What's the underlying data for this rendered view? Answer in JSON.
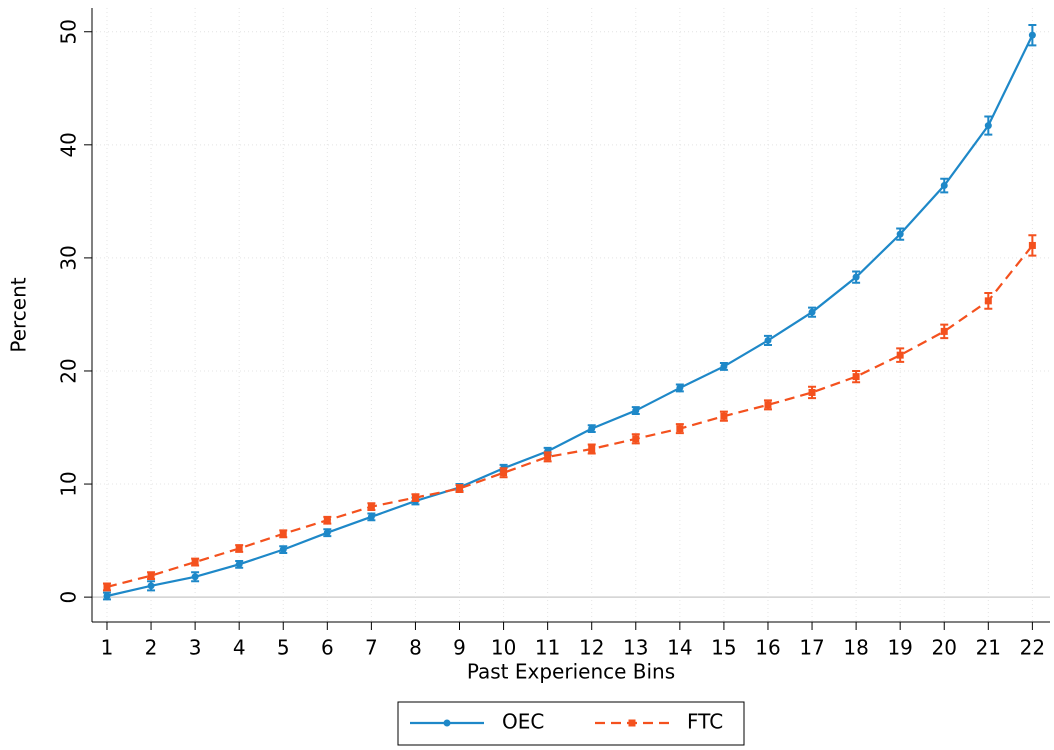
{
  "chart_data": {
    "type": "line",
    "x_label": "Past Experience Bins",
    "y_label": "Percent",
    "x": [
      1,
      2,
      3,
      4,
      5,
      6,
      7,
      8,
      9,
      10,
      11,
      12,
      13,
      14,
      15,
      16,
      17,
      18,
      19,
      20,
      21,
      22
    ],
    "series": [
      {
        "name": "OEC",
        "color": "#1e88c8",
        "marker": "circle",
        "dash": false,
        "values": [
          0.1,
          1.0,
          1.8,
          2.9,
          4.2,
          5.7,
          7.1,
          8.5,
          9.7,
          11.4,
          12.9,
          14.9,
          16.5,
          18.5,
          20.4,
          22.7,
          25.2,
          28.3,
          32.1,
          36.4,
          41.7,
          49.7
        ],
        "errors": [
          0.3,
          0.4,
          0.4,
          0.3,
          0.3,
          0.3,
          0.3,
          0.3,
          0.3,
          0.3,
          0.3,
          0.3,
          0.3,
          0.3,
          0.3,
          0.4,
          0.4,
          0.5,
          0.5,
          0.6,
          0.8,
          0.9
        ]
      },
      {
        "name": "FTC",
        "color": "#f4511e",
        "marker": "square",
        "dash": true,
        "values": [
          0.9,
          1.9,
          3.1,
          4.3,
          5.6,
          6.8,
          8.0,
          8.8,
          9.6,
          11.0,
          12.4,
          13.1,
          14.0,
          14.9,
          16.0,
          17.0,
          18.1,
          19.5,
          21.4,
          23.5,
          26.2,
          31.1
        ],
        "errors": [
          0.3,
          0.3,
          0.3,
          0.3,
          0.3,
          0.3,
          0.3,
          0.3,
          0.3,
          0.4,
          0.4,
          0.4,
          0.4,
          0.4,
          0.4,
          0.4,
          0.5,
          0.5,
          0.6,
          0.6,
          0.7,
          0.9
        ]
      }
    ],
    "xlim": [
      0.66,
      22.4
    ],
    "ylim": [
      -2.2,
      52.1
    ],
    "xticks": [
      1,
      2,
      3,
      4,
      5,
      6,
      7,
      8,
      9,
      10,
      11,
      12,
      13,
      14,
      15,
      16,
      17,
      18,
      19,
      20,
      21,
      22
    ],
    "yticks": [
      0,
      10,
      20,
      30,
      40,
      50
    ],
    "grid": true,
    "legend": "bottom"
  }
}
